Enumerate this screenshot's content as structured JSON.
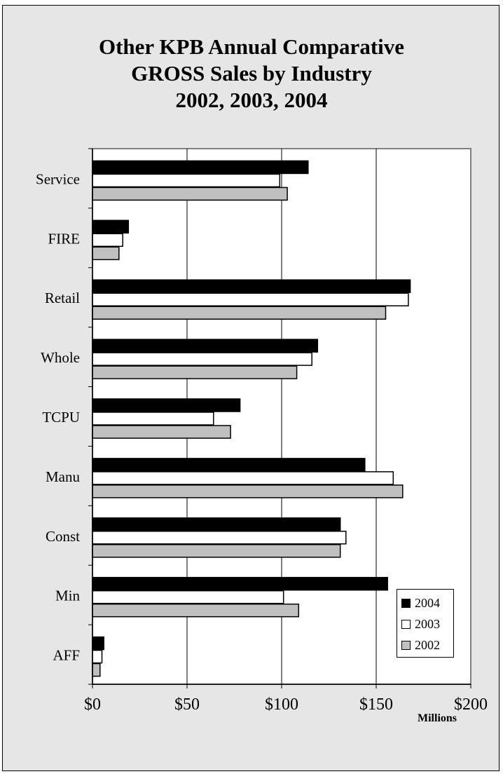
{
  "chart_data": {
    "type": "bar",
    "orientation": "horizontal",
    "title": [
      "Other KPB Annual Comparative",
      "GROSS Sales by Industry",
      "2002, 2003, 2004"
    ],
    "categories": [
      "Service",
      "FIRE",
      "Retail",
      "Whole",
      "TCPU",
      "Manu",
      "Const",
      "Min",
      "AFF"
    ],
    "series": [
      {
        "name": "2004",
        "color": "#000000",
        "values": [
          114,
          19,
          168,
          119,
          78,
          144,
          131,
          156,
          6
        ]
      },
      {
        "name": "2003",
        "color": "#ffffff",
        "values": [
          99,
          16,
          167,
          116,
          64,
          159,
          134,
          101,
          5
        ]
      },
      {
        "name": "2002",
        "color": "#c0c0c0",
        "values": [
          103,
          14,
          155,
          108,
          73,
          164,
          131,
          109,
          4
        ]
      }
    ],
    "x_ticks": [
      "$0",
      "$50",
      "$100",
      "$150",
      "$200"
    ],
    "xlim": [
      0,
      200
    ],
    "xlabel": "Millions",
    "grid": "vertical",
    "legend_position": "bottom-right"
  }
}
